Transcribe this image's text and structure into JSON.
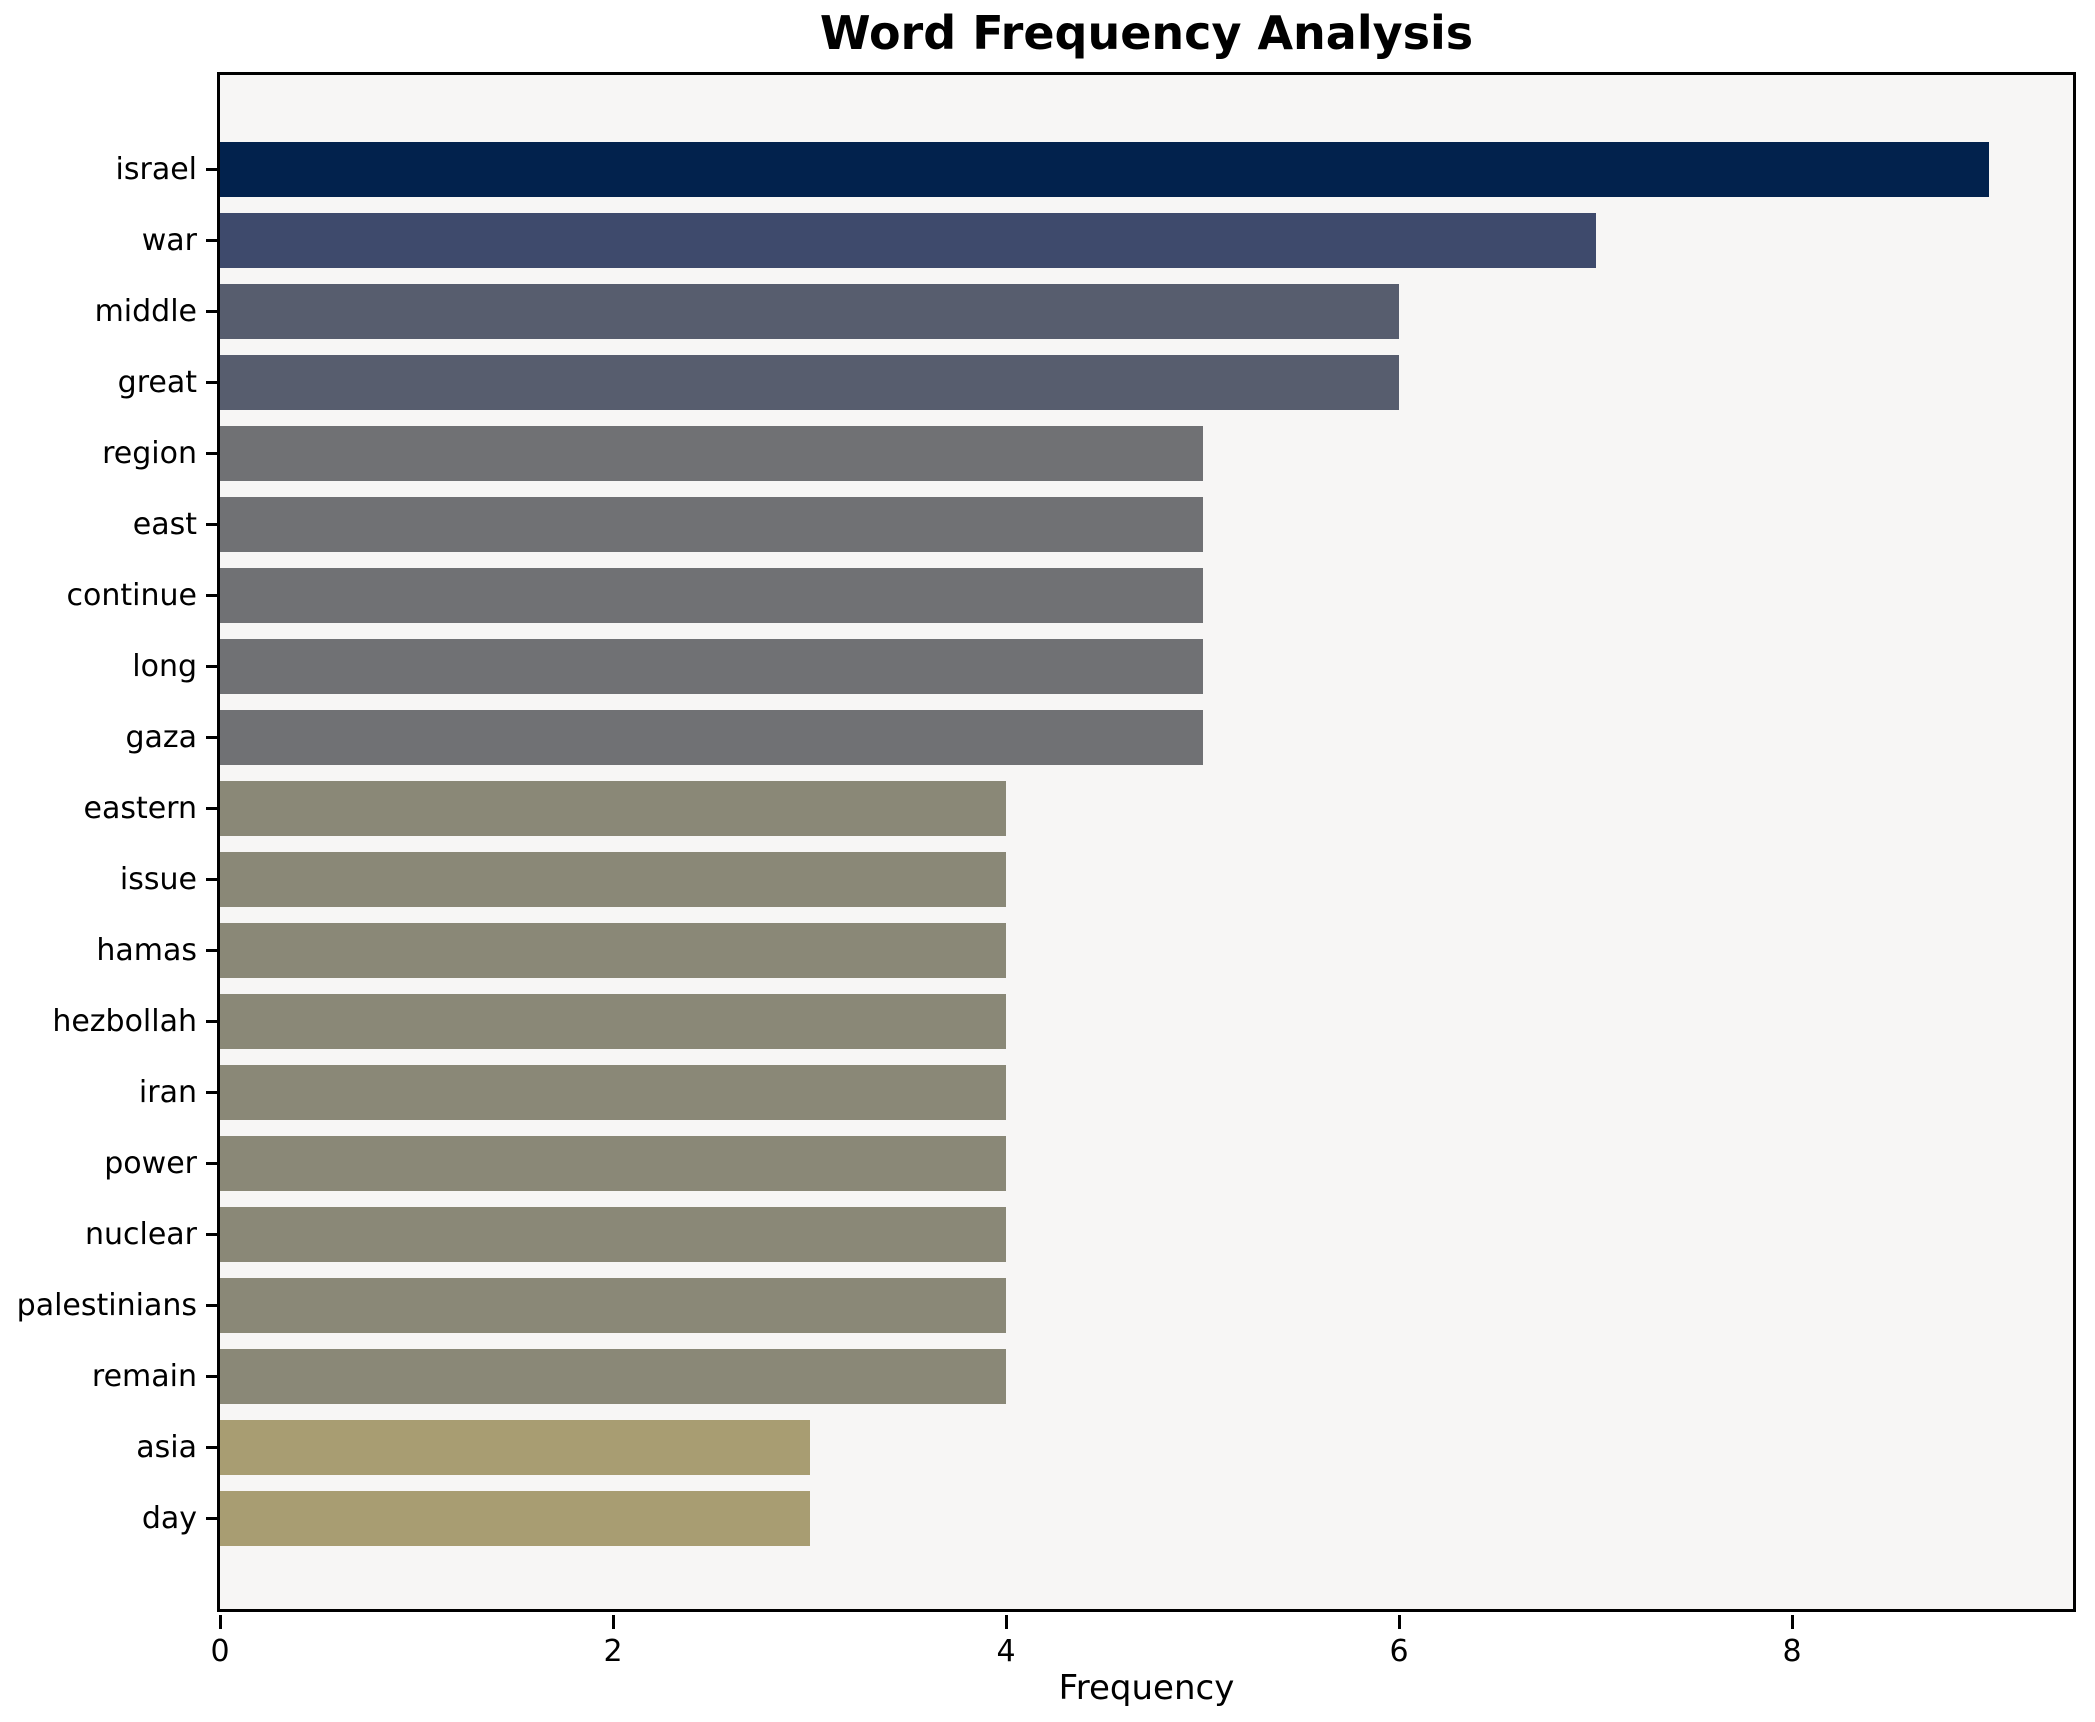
{
  "chart_data": {
    "type": "bar",
    "orientation": "horizontal",
    "title": "Word Frequency Analysis",
    "xlabel": "Frequency",
    "ylabel": "",
    "categories": [
      "israel",
      "war",
      "middle",
      "great",
      "region",
      "east",
      "continue",
      "long",
      "gaza",
      "eastern",
      "issue",
      "hamas",
      "hezbollah",
      "iran",
      "power",
      "nuclear",
      "palestinians",
      "remain",
      "asia",
      "day"
    ],
    "values": [
      9,
      7,
      6,
      6,
      5,
      5,
      5,
      5,
      5,
      4,
      4,
      4,
      4,
      4,
      4,
      4,
      4,
      4,
      3,
      3
    ],
    "bar_colors": [
      "#02224d",
      "#3e4a6c",
      "#575d6e",
      "#575d6e",
      "#707174",
      "#707174",
      "#707174",
      "#707174",
      "#707174",
      "#8a8877",
      "#8a8877",
      "#8a8877",
      "#8a8877",
      "#8a8877",
      "#8a8877",
      "#8a8877",
      "#8a8877",
      "#8a8877",
      "#a89d72",
      "#a89d72"
    ],
    "x_ticks": [
      0,
      2,
      4,
      6,
      8
    ],
    "xlim": [
      0,
      9.43
    ],
    "grid": false,
    "legend": false,
    "colors": {
      "plot_background": "#f7f6f5",
      "figure_background": "#ffffff",
      "spine": "#000000",
      "text": "#000000"
    }
  }
}
